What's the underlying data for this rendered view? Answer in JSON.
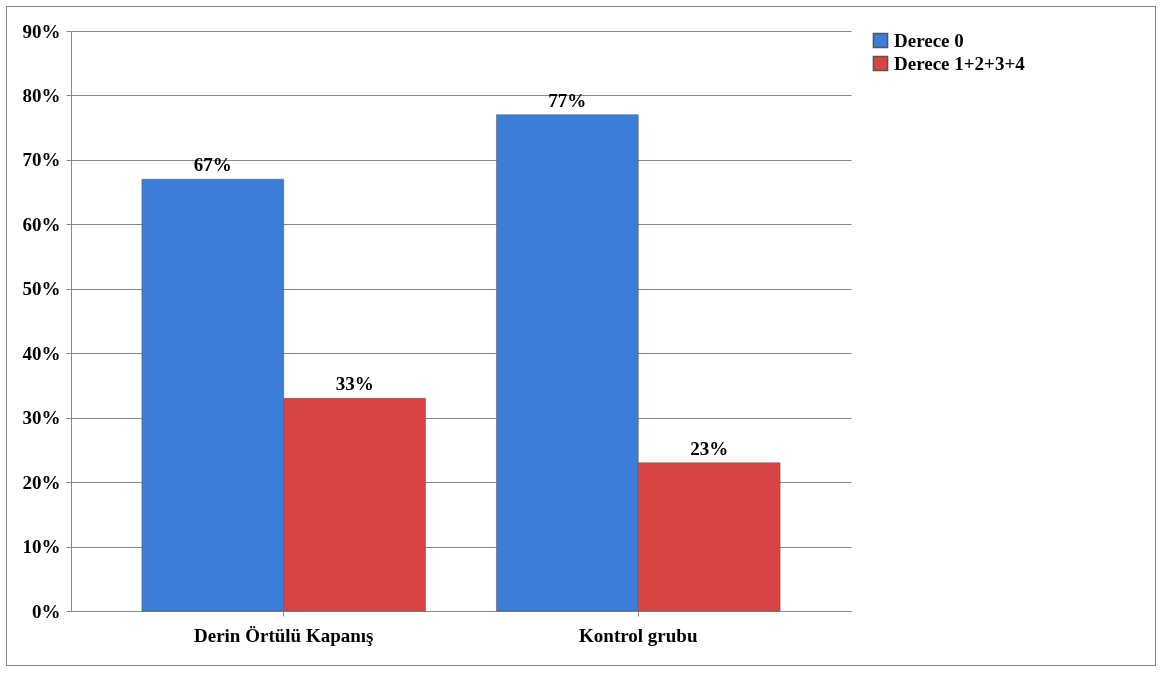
{
  "chart_data": {
    "type": "bar",
    "categories": [
      "Derin Örtülü Kapanış",
      "Kontrol grubu"
    ],
    "series": [
      {
        "name": "Derece 0",
        "color": "#3b7dd8",
        "values": [
          67,
          77
        ],
        "value_labels": [
          "67%",
          "77%"
        ]
      },
      {
        "name": "Derece 1+2+3+4",
        "color": "#d94343",
        "values": [
          33,
          23
        ],
        "value_labels": [
          "33%",
          "23%"
        ]
      }
    ],
    "ylim": [
      0,
      90
    ],
    "yticks": [
      {
        "value": 0,
        "label": "0%"
      },
      {
        "value": 10,
        "label": "10%"
      },
      {
        "value": 20,
        "label": "20%"
      },
      {
        "value": 30,
        "label": "30%"
      },
      {
        "value": 40,
        "label": "40%"
      },
      {
        "value": 50,
        "label": "50%"
      },
      {
        "value": 60,
        "label": "60%"
      },
      {
        "value": 70,
        "label": "70%"
      },
      {
        "value": 80,
        "label": "80%"
      },
      {
        "value": 90,
        "label": "90%"
      }
    ],
    "grid": "y",
    "legend": "right"
  }
}
